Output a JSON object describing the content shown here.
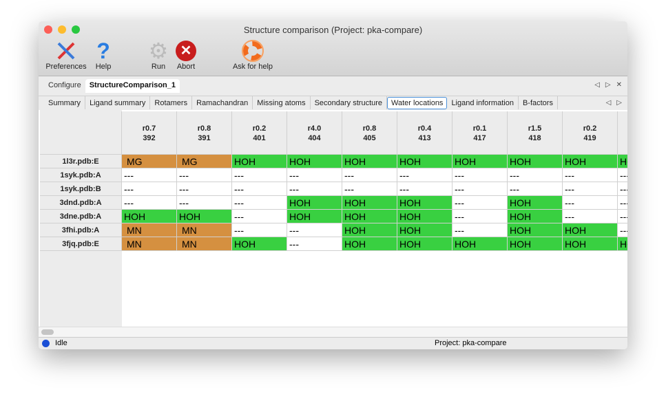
{
  "window": {
    "title": "Structure comparison (Project: pka-compare)"
  },
  "toolbar": [
    {
      "label": "Preferences",
      "icon": "tools-icon"
    },
    {
      "label": "Help",
      "icon": "help-icon"
    },
    {
      "label": "Run",
      "icon": "gear-icon"
    },
    {
      "label": "Abort",
      "icon": "abort-icon"
    },
    {
      "label": "Ask for help",
      "icon": "lifebuoy-icon"
    }
  ],
  "tabs": [
    {
      "label": "Configure"
    },
    {
      "label": "StructureComparison_1",
      "active": true
    }
  ],
  "subtabs": [
    {
      "label": "Summary"
    },
    {
      "label": "Ligand summary"
    },
    {
      "label": "Rotamers"
    },
    {
      "label": "Ramachandran"
    },
    {
      "label": "Missing atoms"
    },
    {
      "label": "Secondary structure"
    },
    {
      "label": "Water locations",
      "active": true
    },
    {
      "label": "Ligand information"
    },
    {
      "label": "B-factors"
    }
  ],
  "table": {
    "columns": [
      {
        "r": "r0.7",
        "n": "392"
      },
      {
        "r": "r0.8",
        "n": "391"
      },
      {
        "r": "r0.2",
        "n": "401"
      },
      {
        "r": "r4.0",
        "n": "404"
      },
      {
        "r": "r0.8",
        "n": "405"
      },
      {
        "r": "r0.4",
        "n": "413"
      },
      {
        "r": "r0.1",
        "n": "417"
      },
      {
        "r": "r1.5",
        "n": "418"
      },
      {
        "r": "r0.2",
        "n": "419"
      },
      {
        "r": "",
        "n": ""
      }
    ],
    "rows": [
      {
        "label": "1l3r.pdb:E",
        "cells": [
          "MG",
          "MG",
          "HOH",
          "HOH",
          "HOH",
          "HOH",
          "HOH",
          "HOH",
          "HOH",
          "HOH"
        ]
      },
      {
        "label": "1syk.pdb:A",
        "cells": [
          "---",
          "---",
          "---",
          "---",
          "---",
          "---",
          "---",
          "---",
          "---",
          "---"
        ]
      },
      {
        "label": "1syk.pdb:B",
        "cells": [
          "---",
          "---",
          "---",
          "---",
          "---",
          "---",
          "---",
          "---",
          "---",
          "---"
        ]
      },
      {
        "label": "3dnd.pdb:A",
        "cells": [
          "---",
          "---",
          "---",
          "HOH",
          "HOH",
          "HOH",
          "---",
          "HOH",
          "---",
          "---"
        ]
      },
      {
        "label": "3dne.pdb:A",
        "cells": [
          "HOH",
          "HOH",
          "---",
          "HOH",
          "HOH",
          "HOH",
          "---",
          "HOH",
          "---",
          "---"
        ]
      },
      {
        "label": "3fhi.pdb:A",
        "cells": [
          "MN",
          "MN",
          "---",
          "---",
          "HOH",
          "HOH",
          "---",
          "HOH",
          "HOH",
          "---"
        ]
      },
      {
        "label": "3fjq.pdb:E",
        "cells": [
          "MN",
          "MN",
          "HOH",
          "---",
          "HOH",
          "HOH",
          "HOH",
          "HOH",
          "HOH",
          "HOH"
        ]
      }
    ]
  },
  "colors": {
    "metal": "#d59040",
    "water": "#39d041",
    "empty": "#ffffff"
  },
  "status": {
    "text": "Idle",
    "project": "Project: pka-compare"
  }
}
